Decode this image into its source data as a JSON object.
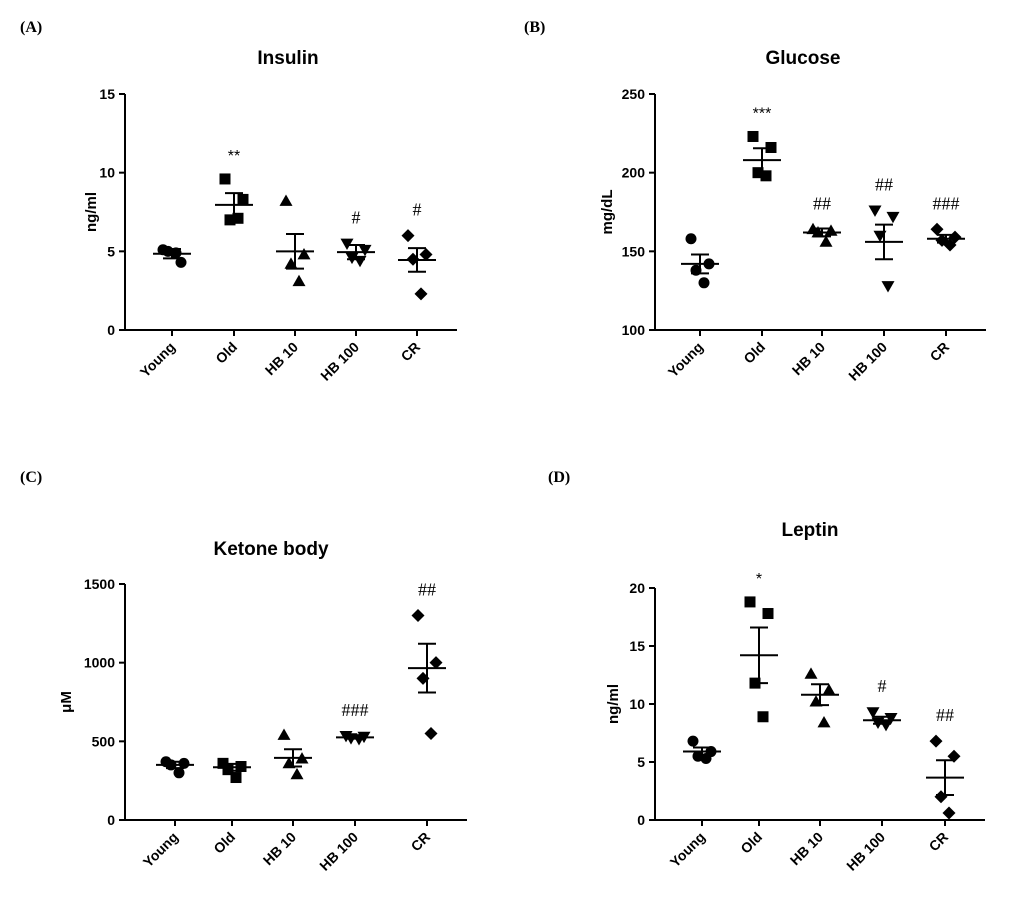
{
  "chart_data": [
    {
      "panel": "(A)",
      "type": "scatter",
      "title": "Insulin",
      "xlabel": "",
      "ylabel": "ng/ml",
      "ylim": [
        0,
        15
      ],
      "yticks": [
        0,
        5,
        10,
        15
      ],
      "categories": [
        "Young",
        "Old",
        "HB 10",
        "HB 100",
        "CR"
      ],
      "markers": [
        "circle",
        "square",
        "triangle-up",
        "triangle-down",
        "diamond"
      ],
      "points": [
        [
          5.1,
          4.3,
          5.0,
          4.9
        ],
        [
          9.6,
          8.3,
          7.0,
          7.1
        ],
        [
          8.2,
          4.8,
          4.2,
          3.1
        ],
        [
          5.5,
          5.1,
          4.6,
          4.4
        ],
        [
          6.0,
          4.8,
          4.5,
          2.3
        ]
      ],
      "means": [
        4.85,
        7.95,
        5.0,
        4.95,
        4.45
      ],
      "sem": [
        0.3,
        0.75,
        1.1,
        0.45,
        0.75
      ],
      "annotations": [
        "",
        "**",
        "",
        "#",
        "#"
      ]
    },
    {
      "panel": "(B)",
      "type": "scatter",
      "title": "Glucose",
      "xlabel": "",
      "ylabel": "mg/dL",
      "ylim": [
        100,
        250
      ],
      "yticks": [
        100,
        150,
        200,
        250
      ],
      "categories": [
        "Young",
        "Old",
        "HB 10",
        "HB 100",
        "CR"
      ],
      "markers": [
        "circle",
        "square",
        "triangle-up",
        "triangle-down",
        "diamond"
      ],
      "points": [
        [
          158,
          142,
          138,
          130
        ],
        [
          223,
          216,
          200,
          198
        ],
        [
          164,
          163,
          162,
          156
        ],
        [
          176,
          172,
          160,
          128
        ],
        [
          164,
          159,
          157,
          154
        ]
      ],
      "means": [
        142,
        208,
        162,
        156,
        158
      ],
      "sem": [
        6,
        7.5,
        2.5,
        11,
        2.5
      ],
      "annotations": [
        "",
        "***",
        "##",
        "##",
        "###"
      ]
    },
    {
      "panel": "(C)",
      "type": "scatter",
      "title": "Ketone body",
      "xlabel": "",
      "ylabel": "μM",
      "ylim": [
        0,
        1500
      ],
      "yticks": [
        0,
        500,
        1000,
        1500
      ],
      "categories": [
        "Young",
        "Old",
        "HB 10",
        "HB 100",
        "CR"
      ],
      "markers": [
        "circle",
        "square",
        "triangle-up",
        "triangle-down",
        "diamond"
      ],
      "points": [
        [
          370,
          360,
          350,
          300
        ],
        [
          360,
          340,
          320,
          270
        ],
        [
          540,
          390,
          360,
          290
        ],
        [
          535,
          530,
          520,
          515
        ],
        [
          1300,
          1000,
          900,
          550
        ]
      ],
      "means": [
        350,
        335,
        395,
        525,
        965
      ],
      "sem": [
        20,
        22,
        55,
        8,
        155
      ],
      "annotations": [
        "",
        "",
        "",
        "###",
        "##"
      ]
    },
    {
      "panel": "(D)",
      "type": "scatter",
      "title": "Leptin",
      "xlabel": "",
      "ylabel": "ng/ml",
      "ylim": [
        0,
        20
      ],
      "yticks": [
        0,
        5,
        10,
        15,
        20
      ],
      "categories": [
        "Young",
        "Old",
        "HB 10",
        "HB 100",
        "CR"
      ],
      "markers": [
        "circle",
        "square",
        "triangle-up",
        "triangle-down",
        "diamond"
      ],
      "points": [
        [
          6.8,
          5.9,
          5.5,
          5.3
        ],
        [
          18.8,
          17.8,
          11.8,
          8.9
        ],
        [
          12.6,
          11.2,
          10.2,
          8.4
        ],
        [
          9.3,
          8.8,
          8.4,
          8.2
        ],
        [
          6.8,
          5.5,
          2.0,
          0.6
        ]
      ],
      "means": [
        5.9,
        14.2,
        10.8,
        8.6,
        3.65
      ],
      "sem": [
        0.35,
        2.4,
        0.9,
        0.3,
        1.5
      ],
      "annotations": [
        "",
        "*",
        "",
        "#",
        "##"
      ]
    }
  ]
}
